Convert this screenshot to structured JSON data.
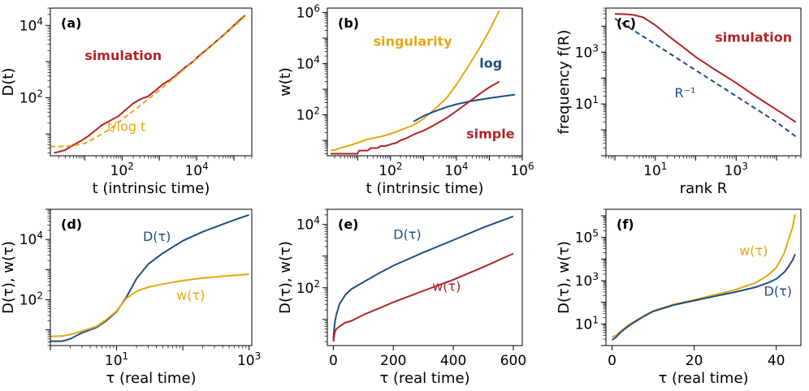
{
  "colors": {
    "red": "#b22428",
    "orange": "#e5a712",
    "blue": "#1f4e85"
  },
  "chart_data": [
    {
      "id": "a",
      "tag": "(a)",
      "type": "line",
      "xscale": "log",
      "yscale": "log",
      "xlim": [
        1.2,
        300000
      ],
      "ylim": [
        2.5,
        30000
      ],
      "xticks": [
        100,
        10000
      ],
      "xtick_labels": [
        "10^2",
        "10^4"
      ],
      "yticks": [
        100,
        10000
      ],
      "ytick_labels": [
        "10^2",
        "10^4"
      ],
      "xlabel": "t (intrinsic time)",
      "ylabel": "D(t)",
      "series": [
        {
          "name": "simulation",
          "color": "red",
          "dash": false,
          "x": [
            1.5,
            2,
            3,
            5,
            8,
            12,
            20,
            30,
            50,
            80,
            120,
            200,
            300,
            500,
            800,
            1200,
            2000,
            3000,
            5000,
            8000,
            12000,
            20000,
            30000,
            50000,
            80000,
            120000,
            200000
          ],
          "y": [
            3.0,
            3.2,
            3.6,
            5.0,
            6.5,
            8.5,
            13,
            18,
            24,
            31,
            45,
            70,
            90,
            110,
            160,
            230,
            320,
            450,
            700,
            1000,
            1500,
            2300,
            3300,
            5200,
            8000,
            12000,
            19000
          ]
        },
        {
          "name": "t/log t",
          "color": "orange",
          "dash": true,
          "x": [
            1.2,
            2,
            3,
            5,
            10,
            20,
            50,
            100,
            300,
            1000,
            3000,
            10000,
            30000,
            100000,
            200000
          ],
          "y": [
            4.5,
            4.5,
            4.6,
            4.8,
            5.5,
            8,
            14,
            25,
            60,
            160,
            420,
            1200,
            3200,
            9500,
            18000
          ]
        }
      ],
      "annotations": [
        {
          "text": "simulation",
          "color": "red",
          "bold": true,
          "x": 10,
          "y": 1100
        },
        {
          "text": "t/log t",
          "color": "orange",
          "bold": false,
          "x": 40,
          "y": 12
        }
      ]
    },
    {
      "id": "b",
      "tag": "(b)",
      "type": "line",
      "xscale": "log",
      "yscale": "log",
      "xlim": [
        1.2,
        1000000
      ],
      "ylim": [
        2.5,
        1500000
      ],
      "xticks": [
        100,
        10000,
        1000000
      ],
      "xtick_labels": [
        "10^2",
        "10^4",
        "10^6"
      ],
      "yticks": [
        100,
        10000,
        1000000
      ],
      "ytick_labels": [
        "10^2",
        "10^4",
        "10^6"
      ],
      "xlabel": "t (intrinsic time)",
      "ylabel": "w(t)",
      "series": [
        {
          "name": "singularity",
          "color": "orange",
          "dash": false,
          "x": [
            1.5,
            2,
            3,
            5,
            10,
            20,
            50,
            100,
            200,
            500,
            1000,
            2000,
            5000,
            10000,
            20000,
            50000,
            100000,
            200000
          ],
          "y": [
            4,
            4.2,
            5,
            6,
            8,
            11,
            14,
            18,
            25,
            40,
            70,
            150,
            450,
            1500,
            6000,
            40000,
            200000,
            1200000
          ]
        },
        {
          "name": "log",
          "color": "blue",
          "dash": false,
          "x": [
            500,
            1000,
            2000,
            5000,
            10000,
            30000,
            100000,
            300000,
            600000
          ],
          "y": [
            55,
            90,
            130,
            200,
            260,
            350,
            450,
            550,
            620
          ]
        },
        {
          "name": "simple",
          "color": "red",
          "dash": false,
          "x": [
            1.5,
            5,
            10,
            11,
            20,
            25,
            40,
            50,
            70,
            100,
            150,
            200,
            300,
            500,
            1000,
            2000,
            5000,
            10000,
            20000,
            50000,
            100000,
            200000
          ],
          "y": [
            3,
            3,
            3,
            4,
            4,
            5,
            5,
            6,
            6,
            7,
            8,
            10,
            12,
            17,
            24,
            38,
            75,
            140,
            270,
            650,
            1200,
            2000
          ]
        }
      ],
      "annotations": [
        {
          "text": "singularity",
          "color": "orange",
          "bold": true,
          "x": 30,
          "y": 50000
        },
        {
          "text": "log",
          "color": "blue",
          "bold": true,
          "x": 50000,
          "y": 7000
        },
        {
          "text": "simple",
          "color": "red",
          "bold": true,
          "x": 20000,
          "y": 12
        }
      ]
    },
    {
      "id": "c",
      "tag": "(c)",
      "type": "line",
      "xscale": "log",
      "yscale": "log",
      "xlim": [
        0.6,
        40000
      ],
      "ylim": [
        0.1,
        50000
      ],
      "xticks": [
        10,
        1000
      ],
      "xtick_labels": [
        "10^1",
        "10^3"
      ],
      "yticks": [
        10,
        1000
      ],
      "ytick_labels": [
        "10^1",
        "10^3"
      ],
      "xlabel": "rank R",
      "ylabel": "frequency f(R)",
      "series": [
        {
          "name": "simulation",
          "color": "red",
          "dash": false,
          "x": [
            1,
            2,
            3,
            5,
            10,
            20,
            50,
            100,
            300,
            1000,
            3000,
            10000,
            20000,
            30000
          ],
          "y": [
            30000,
            29000,
            27000,
            22000,
            11000,
            4500,
            1500,
            650,
            210,
            65,
            20,
            6,
            3,
            2
          ]
        },
        {
          "name": "R^-1",
          "color": "blue",
          "dash": true,
          "x": [
            1,
            10,
            100,
            1000,
            10000,
            30000
          ],
          "y": [
            20000,
            2000,
            200,
            20,
            2,
            0.55
          ]
        }
      ],
      "annotations": [
        {
          "text": "simulation",
          "color": "red",
          "bold": true,
          "x": 300,
          "y": 2500
        },
        {
          "text": "R⁻¹",
          "color": "blue",
          "bold": false,
          "x": 30,
          "y": 18
        }
      ]
    },
    {
      "id": "d",
      "tag": "(d)",
      "type": "line",
      "xscale": "log",
      "yscale": "log",
      "xlim": [
        1,
        1100
      ],
      "ylim": [
        3,
        100000
      ],
      "xticks": [
        10,
        1000
      ],
      "xtick_labels": [
        "10^1",
        "10^3"
      ],
      "yticks": [
        100,
        10000
      ],
      "ytick_labels": [
        "10^2",
        "10^4"
      ],
      "xlabel": "τ (real time)",
      "ylabel": "D(τ),  w(τ)",
      "series": [
        {
          "name": "D(τ)",
          "color": "blue",
          "dash": false,
          "x": [
            1,
            1.5,
            2,
            3,
            4,
            5,
            7,
            10,
            14,
            20,
            30,
            50,
            100,
            200,
            400,
            700,
            1000
          ],
          "y": [
            4.2,
            4.2,
            5,
            8,
            10,
            12,
            20,
            40,
            120,
            500,
            1500,
            3500,
            9000,
            18000,
            32000,
            50000,
            65000
          ]
        },
        {
          "name": "w(τ)",
          "color": "orange",
          "dash": false,
          "x": [
            1,
            1.5,
            2,
            3,
            4,
            5,
            7,
            10,
            14,
            20,
            30,
            50,
            100,
            200,
            400,
            700,
            1000
          ],
          "y": [
            6,
            6.2,
            7,
            9,
            11,
            13,
            22,
            42,
            110,
            190,
            260,
            330,
            430,
            520,
            600,
            660,
            700
          ]
        }
      ],
      "annotations": [
        {
          "text": "D(τ)",
          "color": "blue",
          "bold": false,
          "x": 25,
          "y": 9000
        },
        {
          "text": "w(τ)",
          "color": "orange",
          "bold": false,
          "x": 80,
          "y": 100
        }
      ]
    },
    {
      "id": "e",
      "tag": "(e)",
      "type": "line",
      "xscale": "linear",
      "yscale": "log",
      "xlim": [
        -20,
        630
      ],
      "ylim": [
        1.5,
        30000
      ],
      "xticks": [
        0,
        200,
        400,
        600
      ],
      "xtick_labels": [
        "0",
        "200",
        "400",
        "600"
      ],
      "yticks": [
        100,
        10000
      ],
      "ytick_labels": [
        "10^2",
        "10^4"
      ],
      "xlabel": "τ (real time)",
      "ylabel": "D(τ),  w(τ)",
      "series": [
        {
          "name": "D(τ)",
          "color": "blue",
          "dash": false,
          "x": [
            0,
            5,
            10,
            20,
            40,
            60,
            100,
            150,
            200,
            300,
            400,
            500,
            600
          ],
          "y": [
            2.5,
            8,
            14,
            30,
            60,
            90,
            150,
            280,
            500,
            1300,
            3200,
            8000,
            18000
          ]
        },
        {
          "name": "w(τ)",
          "color": "red",
          "dash": false,
          "x": [
            0,
            5,
            10,
            20,
            40,
            60,
            100,
            150,
            200,
            300,
            400,
            500,
            600
          ],
          "y": [
            2,
            4,
            5,
            6,
            8,
            9,
            14,
            22,
            35,
            80,
            180,
            450,
            1200
          ]
        }
      ],
      "annotations": [
        {
          "text": "D(τ)",
          "color": "blue",
          "bold": false,
          "x": 200,
          "y": 3500
        },
        {
          "text": "w(τ)",
          "color": "red",
          "bold": false,
          "x": 330,
          "y": 80
        }
      ]
    },
    {
      "id": "f",
      "tag": "(f)",
      "type": "line",
      "xscale": "linear",
      "yscale": "log",
      "xlim": [
        -1.5,
        46
      ],
      "ylim": [
        1,
        2000000
      ],
      "xticks": [
        0,
        20,
        40
      ],
      "xtick_labels": [
        "0",
        "20",
        "40"
      ],
      "yticks": [
        10,
        1000,
        100000
      ],
      "ytick_labels": [
        "10^1",
        "10^3",
        "10^5"
      ],
      "xlabel": "τ (real time)",
      "ylabel": "D(τ),  w(τ)",
      "series": [
        {
          "name": "w(τ)",
          "color": "orange",
          "dash": false,
          "x": [
            0,
            1,
            2,
            4,
            6,
            8,
            10,
            15,
            20,
            25,
            30,
            35,
            38,
            40,
            42,
            43,
            44,
            44.6
          ],
          "y": [
            2.5,
            3,
            4.5,
            9,
            15,
            25,
            40,
            80,
            130,
            220,
            380,
            800,
            1800,
            4000,
            20000,
            80000,
            300000,
            1200000
          ]
        },
        {
          "name": "D(τ)",
          "color": "blue",
          "dash": false,
          "x": [
            0,
            1,
            2,
            4,
            6,
            8,
            10,
            15,
            20,
            25,
            30,
            35,
            38,
            40,
            42,
            43,
            44,
            44.6
          ],
          "y": [
            1.8,
            2.5,
            4,
            8,
            14,
            24,
            38,
            75,
            120,
            190,
            300,
            500,
            800,
            1200,
            2500,
            4500,
            9000,
            17000
          ]
        }
      ],
      "annotations": [
        {
          "text": "w(τ)",
          "color": "orange",
          "bold": false,
          "x": 31,
          "y": 15000
        },
        {
          "text": "D(τ)",
          "color": "blue",
          "bold": false,
          "x": 37,
          "y": 200
        }
      ]
    }
  ]
}
